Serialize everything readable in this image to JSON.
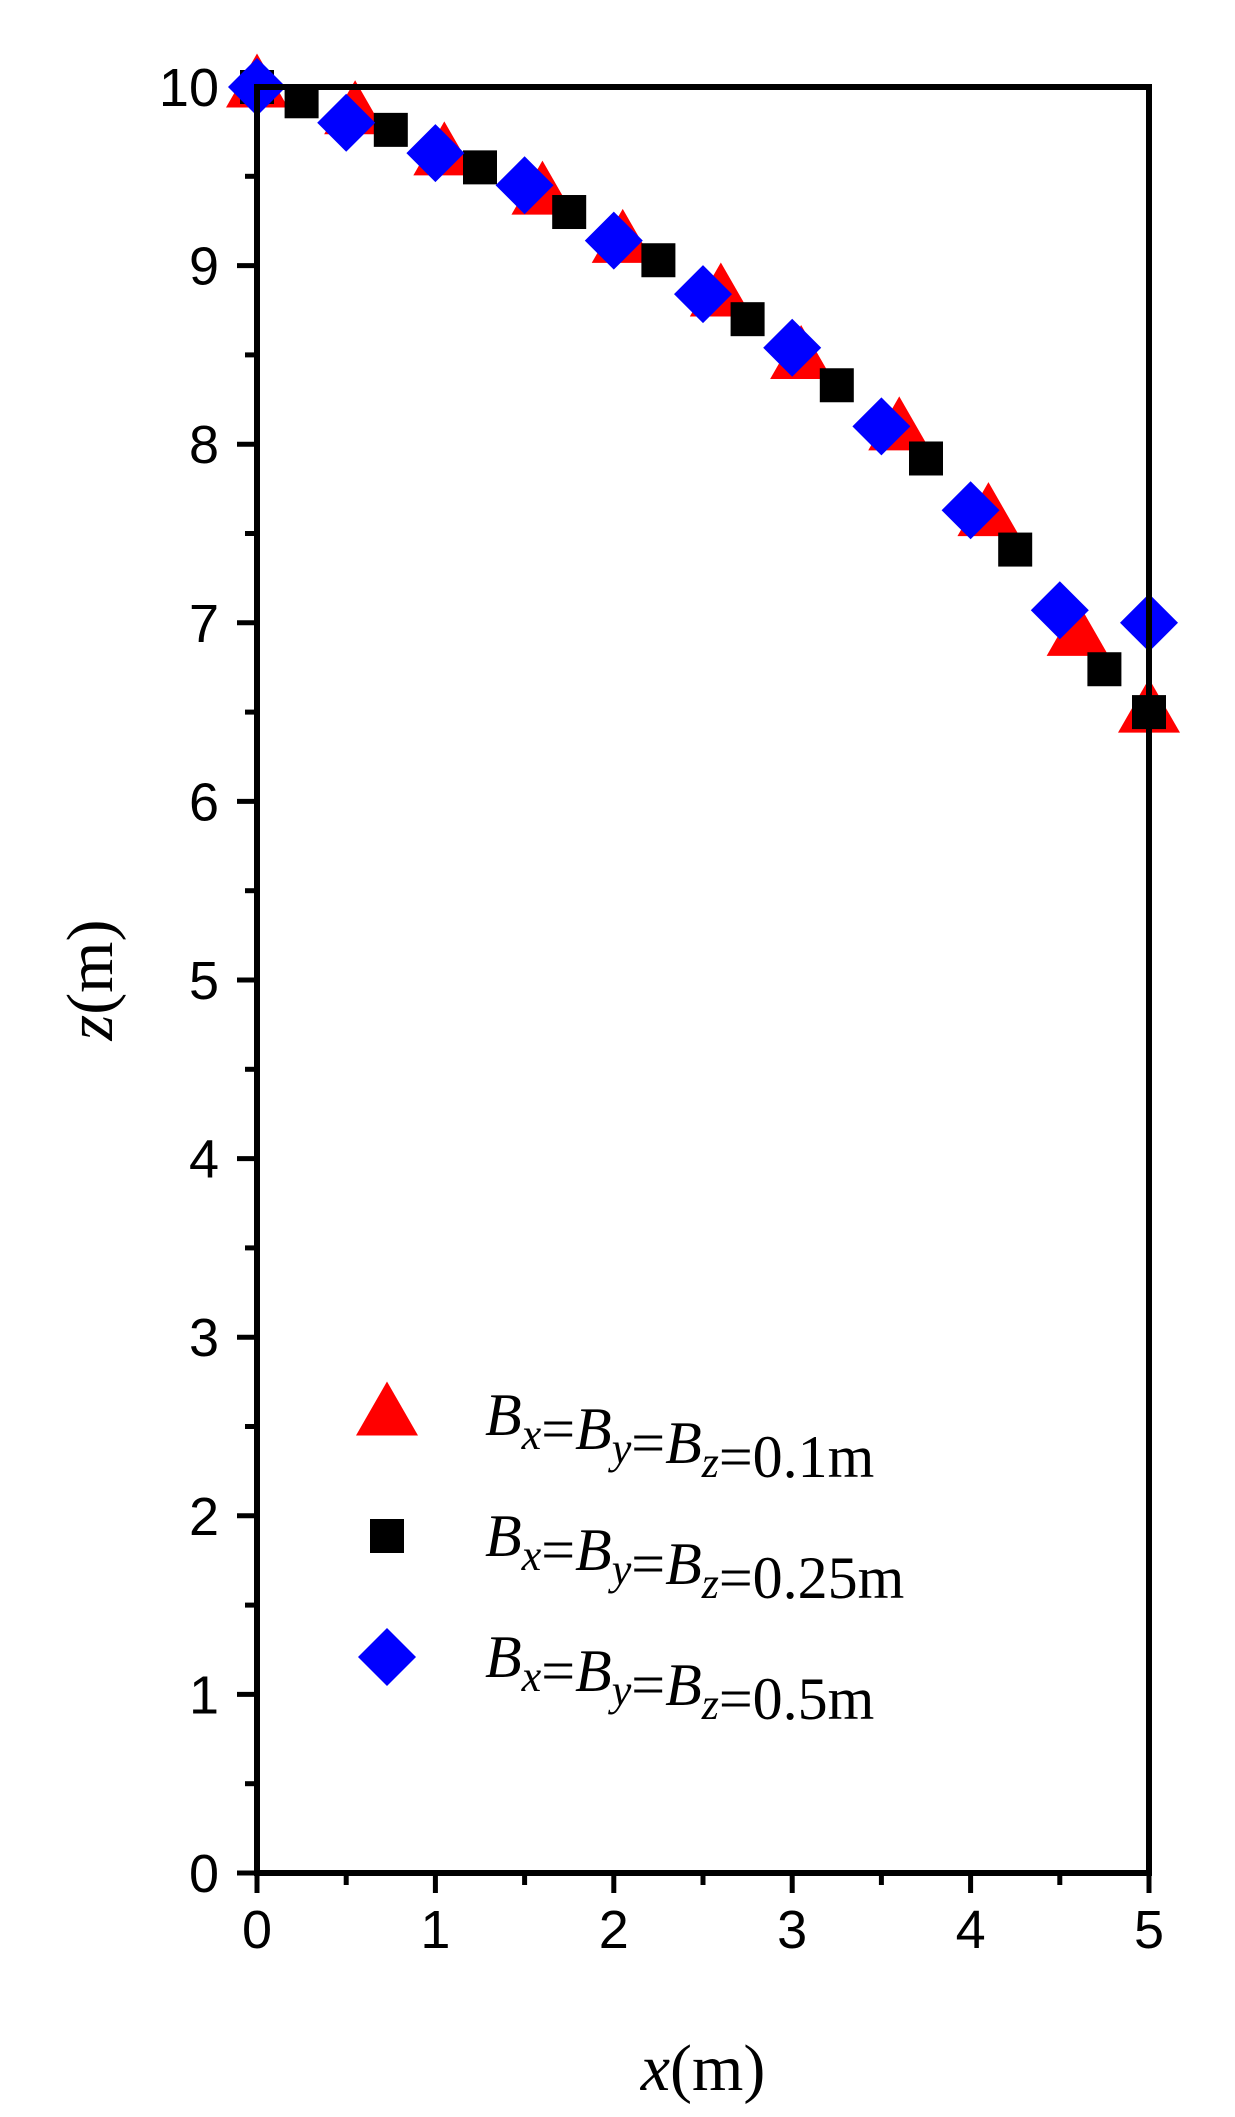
{
  "chart_data": {
    "type": "scatter",
    "xlabel": {
      "var": "x",
      "unit": "(m)"
    },
    "ylabel": {
      "var": "z",
      "unit": "(m)"
    },
    "xlim": [
      0,
      5
    ],
    "ylim": [
      0,
      10
    ],
    "xticks": [
      "0",
      "1",
      "2",
      "3",
      "4",
      "5"
    ],
    "yticks": [
      "0",
      "1",
      "2",
      "3",
      "4",
      "5",
      "6",
      "7",
      "8",
      "9",
      "10"
    ],
    "grid": false,
    "legend_position": "lower-center",
    "series": [
      {
        "name": "Bx=By=Bz=0.1m",
        "legend_value": "=0.1m",
        "marker": "triangle",
        "color": "#ff0000",
        "points": [
          [
            0,
            10
          ],
          [
            0.55,
            9.85
          ],
          [
            1.05,
            9.62
          ],
          [
            1.6,
            9.4
          ],
          [
            2.05,
            9.13
          ],
          [
            2.6,
            8.83
          ],
          [
            3.05,
            8.48
          ],
          [
            3.6,
            8.08
          ],
          [
            4.1,
            7.6
          ],
          [
            4.6,
            6.93
          ],
          [
            5.0,
            6.5
          ]
        ]
      },
      {
        "name": "Bx=By=Bz=0.25m",
        "legend_value": "=0.25m",
        "marker": "square",
        "color": "#000000",
        "points": [
          [
            0,
            10
          ],
          [
            0.25,
            9.92
          ],
          [
            0.75,
            9.76
          ],
          [
            1.25,
            9.55
          ],
          [
            1.75,
            9.3
          ],
          [
            2.25,
            9.03
          ],
          [
            2.75,
            8.7
          ],
          [
            3.25,
            8.33
          ],
          [
            3.75,
            7.92
          ],
          [
            4.25,
            7.41
          ],
          [
            4.75,
            6.74
          ],
          [
            5.0,
            6.5
          ]
        ]
      },
      {
        "name": "Bx=By=Bz=0.5m",
        "legend_value": "=0.5m",
        "marker": "diamond",
        "color": "#0000ff",
        "points": [
          [
            0,
            10
          ],
          [
            0.5,
            9.8
          ],
          [
            1.0,
            9.63
          ],
          [
            1.5,
            9.45
          ],
          [
            2.0,
            9.14
          ],
          [
            2.5,
            8.84
          ],
          [
            3.0,
            8.54
          ],
          [
            3.5,
            8.1
          ],
          [
            4.0,
            7.63
          ],
          [
            4.5,
            7.07
          ],
          [
            5.0,
            7.0
          ]
        ]
      }
    ]
  }
}
